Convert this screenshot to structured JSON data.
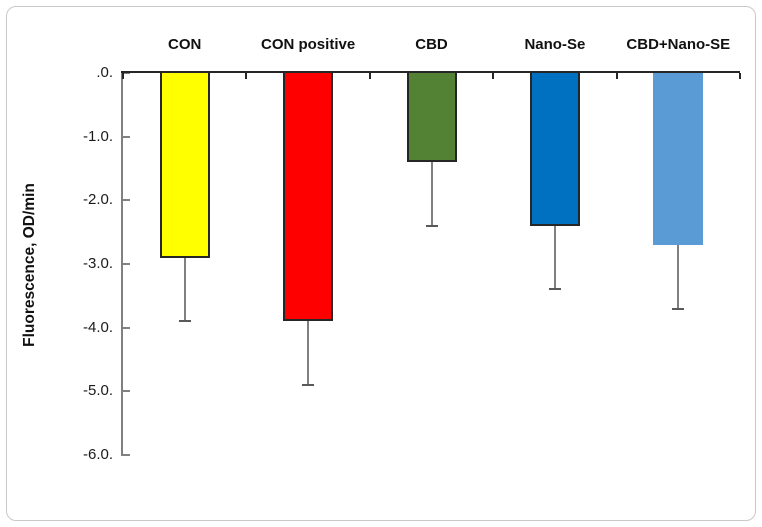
{
  "figure": {
    "background_color": "#ffffff",
    "frame_border_color": "#c9c9c9"
  },
  "chart_data": {
    "type": "bar",
    "title": "",
    "xlabel": "",
    "ylabel": "Fluorescence, OD/min",
    "categories": [
      "CON",
      "CON positive",
      "CBD",
      "Nano-Se",
      "CBD+Nano-SE"
    ],
    "values": [
      -2.9,
      -3.9,
      -1.4,
      -2.4,
      -2.7
    ],
    "errors": [
      1.0,
      1.0,
      1.0,
      1.0,
      1.0
    ],
    "bar_colors": [
      "#ffff00",
      "#ff0000",
      "#548235",
      "#0070c0",
      "#5b9bd5"
    ],
    "bar_borders": [
      "#262626",
      "#262626",
      "#262626",
      "#262626",
      "none"
    ],
    "ylim": [
      0,
      -6
    ],
    "yticks": [
      {
        "value": 0,
        "label": ".0."
      },
      {
        "value": -1,
        "label": "-1.0."
      },
      {
        "value": -2,
        "label": "-2.0."
      },
      {
        "value": -3,
        "label": "-3.0."
      },
      {
        "value": -4,
        "label": "-4.0."
      },
      {
        "value": -5,
        "label": "-5.0."
      },
      {
        "value": -6,
        "label": "-6.0."
      }
    ],
    "grid": false,
    "legend": "none",
    "error_bar_direction": "minus",
    "error_bar_color": "#808080",
    "error_cap_color": "#595959",
    "zero_axis_color": "#262626",
    "yaxis_line_color": "#808080"
  }
}
